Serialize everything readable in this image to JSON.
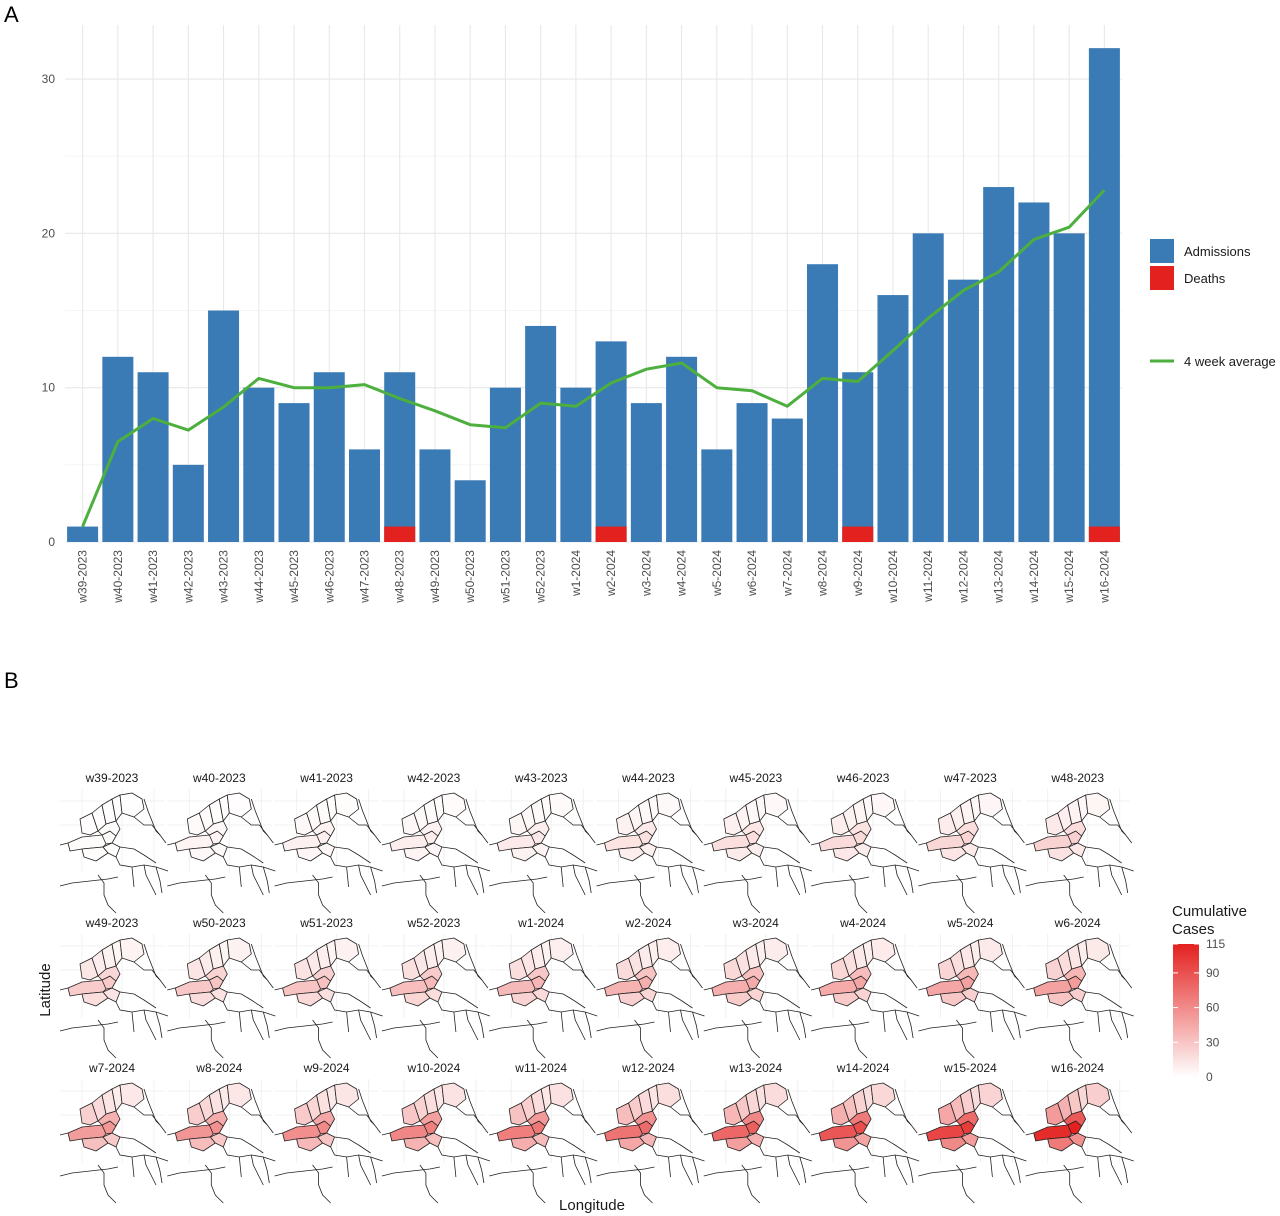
{
  "panel_a_label": "A",
  "panel_b_label": "B",
  "chart_data": [
    {
      "type": "bar",
      "stacked": true,
      "categories": [
        "w39-2023",
        "w40-2023",
        "w41-2023",
        "w42-2023",
        "w43-2023",
        "w44-2023",
        "w45-2023",
        "w46-2023",
        "w47-2023",
        "w48-2023",
        "w49-2023",
        "w50-2023",
        "w51-2023",
        "w52-2023",
        "w1-2024",
        "w2-2024",
        "w3-2024",
        "w4-2024",
        "w5-2024",
        "w6-2024",
        "w7-2024",
        "w8-2024",
        "w9-2024",
        "w10-2024",
        "w11-2024",
        "w12-2024",
        "w13-2024",
        "w14-2024",
        "w15-2024",
        "w16-2024"
      ],
      "series": [
        {
          "name": "Admissions",
          "color": "#3a7ab5",
          "values": [
            1,
            12,
            11,
            5,
            15,
            10,
            9,
            11,
            6,
            11,
            6,
            4,
            10,
            14,
            10,
            13,
            9,
            12,
            6,
            9,
            8,
            18,
            11,
            16,
            20,
            17,
            23,
            22,
            20,
            32
          ]
        },
        {
          "name": "Deaths",
          "color": "#e3211f",
          "values": [
            0,
            0,
            0,
            0,
            0,
            0,
            0,
            0,
            0,
            1,
            0,
            0,
            0,
            0,
            0,
            1,
            0,
            0,
            0,
            0,
            0,
            0,
            1,
            0,
            0,
            0,
            0,
            0,
            0,
            1
          ]
        }
      ],
      "line": {
        "name": "4 week average",
        "color": "#4caf3e",
        "values": [
          1,
          6.5,
          8,
          7.25,
          8.75,
          10.6,
          10,
          10,
          10.2,
          9.3,
          8.5,
          7.6,
          7.4,
          9,
          8.8,
          10.3,
          11.2,
          11.6,
          10,
          9.8,
          8.8,
          10.6,
          10.4,
          12.4,
          14.5,
          16.3,
          17.5,
          19.6,
          20.4,
          22.8
        ]
      },
      "yticks": [
        0,
        10,
        20,
        30
      ],
      "ylim": [
        0,
        33.5
      ],
      "grid": true,
      "legend_position": "right"
    },
    {
      "type": "heatmap",
      "subtype": "choropleth small multiples",
      "facets": [
        "w39-2023",
        "w40-2023",
        "w41-2023",
        "w42-2023",
        "w43-2023",
        "w44-2023",
        "w45-2023",
        "w46-2023",
        "w47-2023",
        "w48-2023",
        "w49-2023",
        "w50-2023",
        "w51-2023",
        "w52-2023",
        "w1-2024",
        "w2-2024",
        "w3-2024",
        "w4-2024",
        "w5-2024",
        "w6-2024",
        "w7-2024",
        "w8-2024",
        "w9-2024",
        "w10-2024",
        "w11-2024",
        "w12-2024",
        "w13-2024",
        "w14-2024",
        "w15-2024",
        "w16-2024"
      ],
      "xlabel": "Longitude",
      "ylabel": "Latitude",
      "legend_title": "Cumulative Cases",
      "legend_ticks": [
        0,
        30,
        60,
        90,
        115
      ],
      "scale": [
        0,
        115
      ],
      "color_low": "#ffffff",
      "color_high": "#e3211f",
      "intensity": [
        0.02,
        0.05,
        0.07,
        0.08,
        0.1,
        0.13,
        0.15,
        0.17,
        0.19,
        0.21,
        0.24,
        0.26,
        0.28,
        0.31,
        0.33,
        0.36,
        0.38,
        0.4,
        0.42,
        0.44,
        0.47,
        0.5,
        0.53,
        0.57,
        0.61,
        0.66,
        0.72,
        0.8,
        0.88,
        1.0
      ]
    }
  ]
}
